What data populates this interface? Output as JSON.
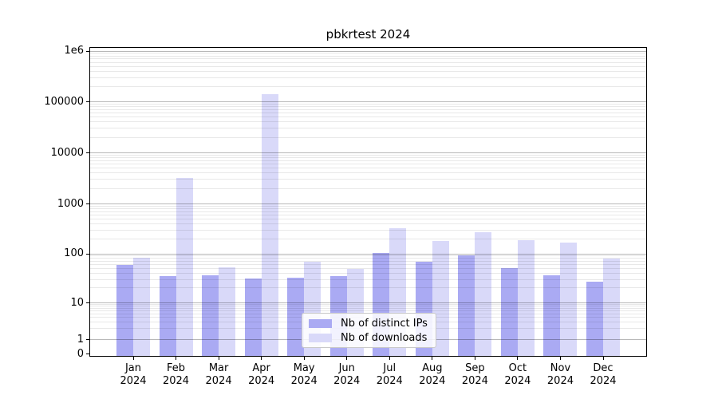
{
  "title": "pbkrtest 2024",
  "colors": {
    "bar_ips": "#aaaaf3",
    "bar_downloads": "#d9d9f9",
    "grid_major": "rgba(0,0,0,0.28)",
    "grid_minor": "rgba(0,0,0,0.09)",
    "spine": "#000000"
  },
  "legend": [
    {
      "label": "Nb of distinct IPs",
      "color_key": "bar_ips"
    },
    {
      "label": "Nb of downloads",
      "color_key": "bar_downloads"
    }
  ],
  "chart_data": {
    "type": "bar",
    "title": "pbkrtest 2024",
    "categories": [
      "Jan 2024",
      "Feb 2024",
      "Mar 2024",
      "Apr 2024",
      "May 2024",
      "Jun 2024",
      "Jul 2024",
      "Aug 2024",
      "Sep 2024",
      "Oct 2024",
      "Nov 2024",
      "Dec 2024"
    ],
    "series": [
      {
        "name": "Nb of distinct IPs",
        "key": "ips",
        "values": [
          60,
          35,
          36,
          31,
          32,
          35,
          104,
          69,
          93,
          51,
          36,
          27
        ]
      },
      {
        "name": "Nb of downloads",
        "key": "downloads",
        "values": [
          83,
          3200,
          53,
          140000,
          68,
          49,
          330,
          182,
          275,
          190,
          168,
          80
        ]
      }
    ],
    "yscale": "symlog",
    "ylim": [
      0,
      1000000
    ],
    "y_tick_labels": [
      "0",
      "1",
      "10",
      "100",
      "1000",
      "10000",
      "100000",
      "1e6"
    ],
    "xlabel": "",
    "ylabel": "",
    "grid": true,
    "grid_above_bars": true,
    "legend_position": "lower center"
  }
}
